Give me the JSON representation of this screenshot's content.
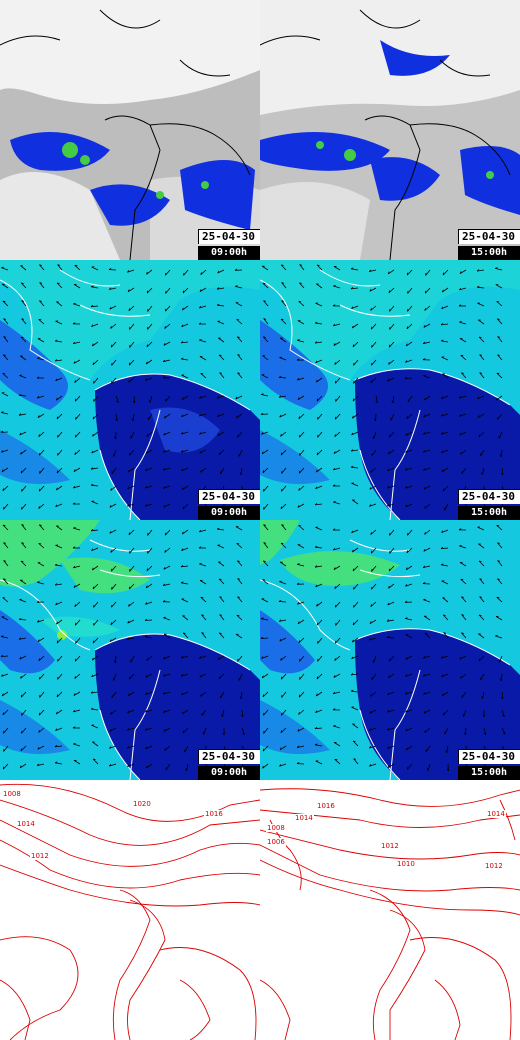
{
  "colors": {
    "satellite_bg": "#c8c8c8",
    "sat_cloud": "#f2f2f2",
    "sat_precip_blue": "#1030e0",
    "sat_precip_green": "#44cc44",
    "wind_ocean": "#14c8e0",
    "wind_land_dark": "#0a1aa8",
    "wind_mid": "#1a6ee8",
    "wind_light": "#22e0c8",
    "wind_green": "#44e080",
    "isobar": "#dd0000",
    "coast_light": "#ffffff",
    "coast_dark": "#000000"
  },
  "panels": [
    {
      "id": "sat-0900",
      "kind": "satellite",
      "date": "25-04-30",
      "time": "09:00h"
    },
    {
      "id": "sat-1500",
      "kind": "satellite",
      "date": "25-04-30",
      "time": "15:00h"
    },
    {
      "id": "wind-a-0900",
      "kind": "wind",
      "date": "25-04-30",
      "time": "09:00h"
    },
    {
      "id": "wind-a-1500",
      "kind": "wind",
      "date": "25-04-30",
      "time": "15:00h"
    },
    {
      "id": "wind-b-0900",
      "kind": "wind-green",
      "date": "25-04-30",
      "time": "09:00h"
    },
    {
      "id": "wind-b-1500",
      "kind": "wind-green",
      "date": "25-04-30",
      "time": "15:00h"
    },
    {
      "id": "pressure-0900",
      "kind": "pressure",
      "date": "",
      "time": ""
    },
    {
      "id": "pressure-1500",
      "kind": "pressure",
      "date": "",
      "time": ""
    }
  ],
  "isobar_labels": {
    "left": [
      "1020",
      "1016",
      "1014",
      "1012",
      "1008"
    ],
    "right": [
      "1016",
      "1014",
      "1012",
      "1010",
      "1008",
      "1006",
      "1014",
      "1012"
    ]
  }
}
